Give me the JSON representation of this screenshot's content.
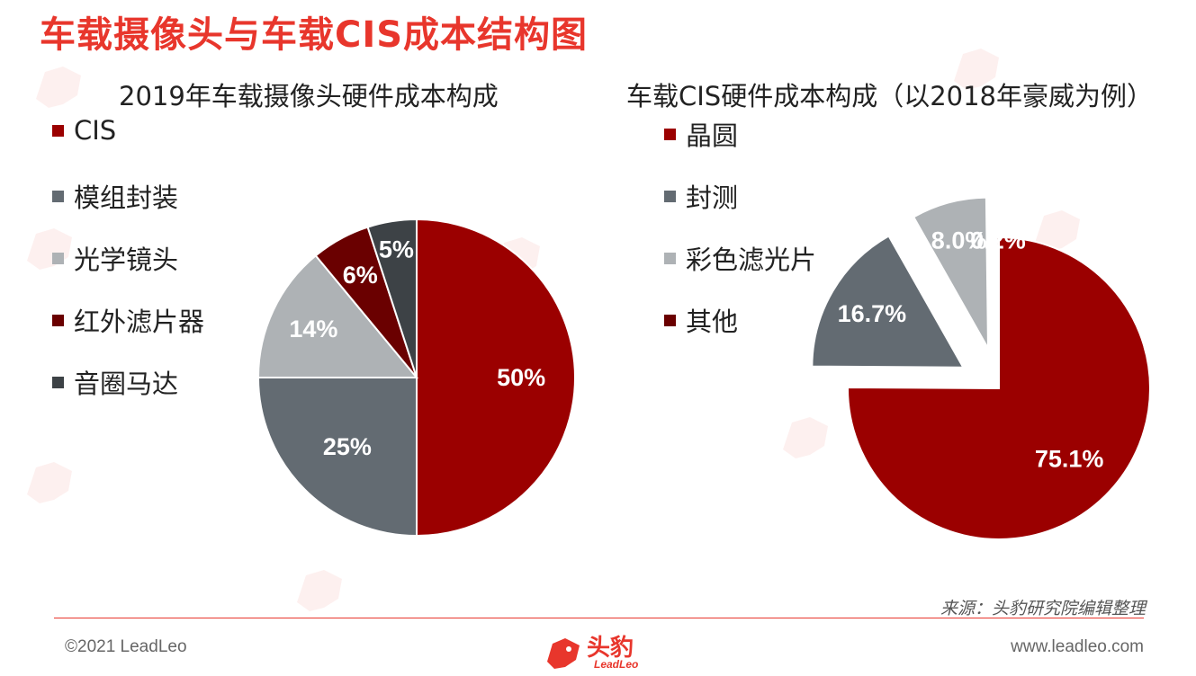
{
  "page": {
    "title": "车载摄像头与车载CIS成本结构图",
    "source": "来源：头豹研究院编辑整理",
    "copyright": "©2021 LeadLeo",
    "website": "www.leadleo.com",
    "logo_cn": "头豹",
    "logo_en": "LeadLeo"
  },
  "colors": {
    "accent": "#e8362c",
    "dark_red": "#9b0000",
    "slate": "#636b72",
    "light_gray": "#aeb2b5",
    "maroon": "#6a0000",
    "charcoal": "#3d4246"
  },
  "chart_data": [
    {
      "type": "pie",
      "title": "2019年车载摄像头硬件成本构成",
      "labels": [
        "CIS",
        "模组封装",
        "光学镜头",
        "红外滤片器",
        "音圈马达"
      ],
      "values": [
        50,
        25,
        14,
        6,
        5
      ],
      "value_labels": [
        "50%",
        "25%",
        "14%",
        "6%",
        "5%"
      ],
      "colors": [
        "#9b0000",
        "#636b72",
        "#aeb2b5",
        "#6a0000",
        "#3d4246"
      ],
      "exploded": false,
      "legend": "left"
    },
    {
      "type": "pie",
      "title": "车载CIS硬件成本构成（以2018年豪威为例）",
      "labels": [
        "晶圆",
        "封测",
        "彩色滤光片",
        "其他"
      ],
      "values": [
        75.1,
        16.7,
        8.0,
        0.2
      ],
      "value_labels": [
        "75.1%",
        "16.7%",
        "8.0%",
        "0.2%"
      ],
      "colors": [
        "#9b0000",
        "#636b72",
        "#aeb2b5",
        "#6a0000"
      ],
      "exploded": true,
      "legend": "left"
    }
  ]
}
